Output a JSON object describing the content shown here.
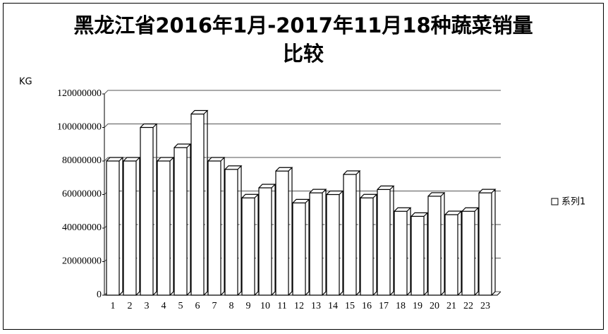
{
  "chart_data": {
    "type": "bar",
    "title": "黑龙江省2016年1月-2017年11月18种蔬菜销量比较",
    "y_label": "KG",
    "categories": [
      "1",
      "2",
      "3",
      "4",
      "5",
      "6",
      "7",
      "8",
      "9",
      "10",
      "11",
      "12",
      "13",
      "14",
      "15",
      "16",
      "17",
      "18",
      "19",
      "20",
      "21",
      "22",
      "23"
    ],
    "series": [
      {
        "name": "系列1",
        "color": "#ffffff",
        "values": [
          80000000,
          80000000,
          100000000,
          80000000,
          88000000,
          108000000,
          80000000,
          75000000,
          58000000,
          64000000,
          74000000,
          55000000,
          61000000,
          60000000,
          72000000,
          58000000,
          63000000,
          50000000,
          47000000,
          59000000,
          48000000,
          50000000,
          61000000
        ]
      }
    ],
    "ylim": [
      0,
      120000000
    ],
    "yticks": [
      0,
      20000000,
      40000000,
      60000000,
      80000000,
      100000000,
      120000000
    ],
    "grid": true,
    "legend": "right"
  }
}
